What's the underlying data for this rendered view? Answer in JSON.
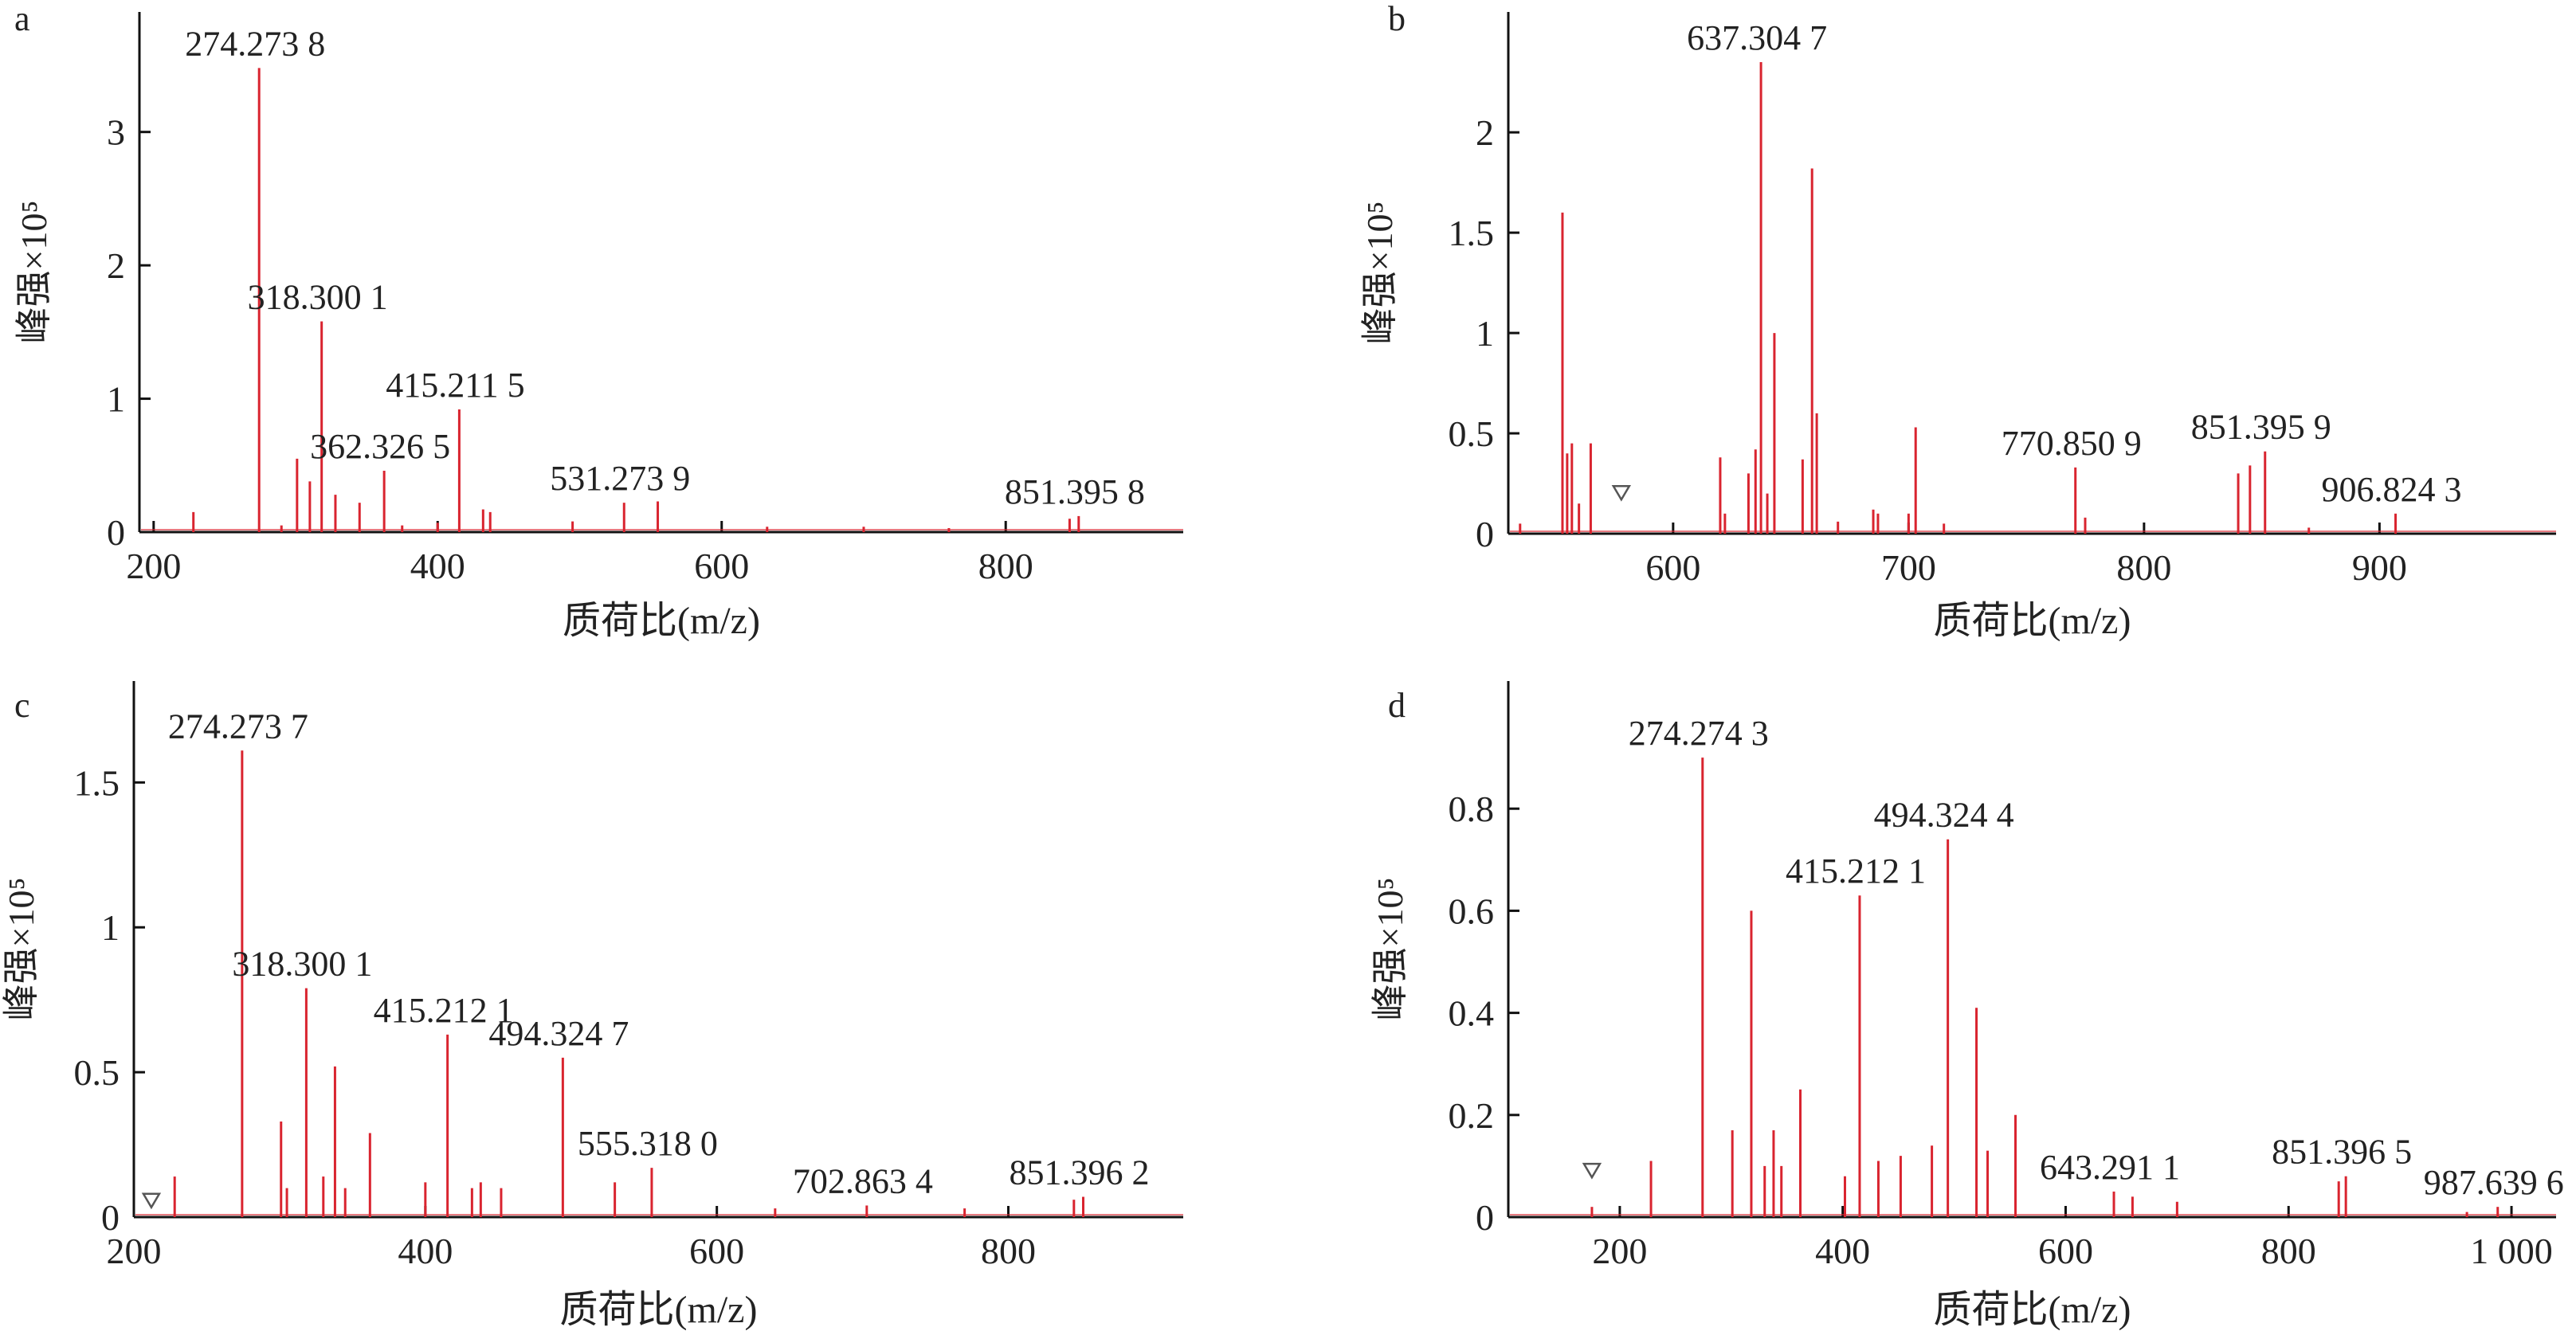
{
  "figure": {
    "line_color": "#d9242f",
    "marker_color": "#555555"
  },
  "chart_data": [
    {
      "panel": "a",
      "type": "bar",
      "xlabel": "质荷比(m/z)",
      "ylabel": "峰强×10⁵",
      "xlim": [
        190,
        925
      ],
      "ylim": [
        0,
        3.9
      ],
      "xticks": [
        200,
        400,
        600,
        800
      ],
      "yticks": [
        0,
        1,
        2,
        3
      ],
      "peaks": [
        {
          "x": 228,
          "y": 0.15
        },
        {
          "x": 274.2738,
          "y": 3.48,
          "label": "274.273 8"
        },
        {
          "x": 290,
          "y": 0.05
        },
        {
          "x": 301,
          "y": 0.55
        },
        {
          "x": 310,
          "y": 0.38
        },
        {
          "x": 318.3001,
          "y": 1.58,
          "label": "318.300 1"
        },
        {
          "x": 328,
          "y": 0.28
        },
        {
          "x": 345,
          "y": 0.22
        },
        {
          "x": 362.3265,
          "y": 0.46,
          "label": "362.326 5"
        },
        {
          "x": 375,
          "y": 0.05
        },
        {
          "x": 400,
          "y": 0.07
        },
        {
          "x": 415.2115,
          "y": 0.92,
          "label": "415.211 5"
        },
        {
          "x": 432,
          "y": 0.17
        },
        {
          "x": 437,
          "y": 0.15
        },
        {
          "x": 495,
          "y": 0.08
        },
        {
          "x": 531.2739,
          "y": 0.22,
          "label": "531.273 9"
        },
        {
          "x": 555,
          "y": 0.23
        },
        {
          "x": 632,
          "y": 0.04
        },
        {
          "x": 700,
          "y": 0.04
        },
        {
          "x": 760,
          "y": 0.03
        },
        {
          "x": 845,
          "y": 0.1
        },
        {
          "x": 851.3958,
          "y": 0.12,
          "label": "851.395 8"
        }
      ],
      "markers": []
    },
    {
      "panel": "b",
      "type": "bar",
      "xlabel": "质荷比(m/z)",
      "ylabel": "峰强×10⁵",
      "xlim": [
        530,
        975
      ],
      "ylim": [
        0,
        2.6
      ],
      "xticks": [
        600,
        700,
        800,
        900
      ],
      "yticks": [
        0,
        0.5,
        1.0,
        1.5,
        2.0
      ],
      "peaks": [
        {
          "x": 535,
          "y": 0.05
        },
        {
          "x": 553,
          "y": 1.6
        },
        {
          "x": 555,
          "y": 0.4
        },
        {
          "x": 557,
          "y": 0.45
        },
        {
          "x": 560,
          "y": 0.15
        },
        {
          "x": 565,
          "y": 0.45
        },
        {
          "x": 620,
          "y": 0.38
        },
        {
          "x": 622,
          "y": 0.1
        },
        {
          "x": 632,
          "y": 0.3
        },
        {
          "x": 635,
          "y": 0.42
        },
        {
          "x": 637.3047,
          "y": 2.35,
          "label": "637.304 7"
        },
        {
          "x": 640,
          "y": 0.2
        },
        {
          "x": 643,
          "y": 1.0
        },
        {
          "x": 655,
          "y": 0.37
        },
        {
          "x": 659,
          "y": 1.82
        },
        {
          "x": 661,
          "y": 0.6
        },
        {
          "x": 670,
          "y": 0.06
        },
        {
          "x": 685,
          "y": 0.12
        },
        {
          "x": 687,
          "y": 0.1
        },
        {
          "x": 700,
          "y": 0.1
        },
        {
          "x": 703,
          "y": 0.53
        },
        {
          "x": 715,
          "y": 0.05
        },
        {
          "x": 770.8509,
          "y": 0.33,
          "label": "770.850 9"
        },
        {
          "x": 775,
          "y": 0.08
        },
        {
          "x": 840,
          "y": 0.3
        },
        {
          "x": 845,
          "y": 0.34
        },
        {
          "x": 851.3959,
          "y": 0.41,
          "label": "851.395 9"
        },
        {
          "x": 870,
          "y": 0.03
        },
        {
          "x": 906.8243,
          "y": 0.1,
          "label": "906.824 3"
        }
      ],
      "markers": [
        {
          "x": 578,
          "y": 0.15
        }
      ]
    },
    {
      "panel": "c",
      "type": "bar",
      "xlabel": "质荷比(m/z)",
      "ylabel": "峰强×10⁵",
      "xlim": [
        200,
        920
      ],
      "ylim": [
        0,
        1.85
      ],
      "xticks": [
        200,
        400,
        600,
        800
      ],
      "yticks": [
        0,
        0.5,
        1.0,
        1.5
      ],
      "peaks": [
        {
          "x": 228,
          "y": 0.14
        },
        {
          "x": 274.2737,
          "y": 1.61,
          "label": "274.273 7"
        },
        {
          "x": 301,
          "y": 0.33
        },
        {
          "x": 305,
          "y": 0.1
        },
        {
          "x": 318.3001,
          "y": 0.79,
          "label": "318.300 1"
        },
        {
          "x": 330,
          "y": 0.14
        },
        {
          "x": 338,
          "y": 0.52
        },
        {
          "x": 345,
          "y": 0.1
        },
        {
          "x": 362,
          "y": 0.29
        },
        {
          "x": 400,
          "y": 0.12
        },
        {
          "x": 415.2121,
          "y": 0.63,
          "label": "415.212 1"
        },
        {
          "x": 432,
          "y": 0.1
        },
        {
          "x": 438,
          "y": 0.12
        },
        {
          "x": 452,
          "y": 0.1
        },
        {
          "x": 494.3247,
          "y": 0.55,
          "label": "494.324 7"
        },
        {
          "x": 530,
          "y": 0.12
        },
        {
          "x": 555.318,
          "y": 0.17,
          "label": "555.318 0"
        },
        {
          "x": 640,
          "y": 0.03
        },
        {
          "x": 702.8634,
          "y": 0.04,
          "label": "702.863 4"
        },
        {
          "x": 770,
          "y": 0.03
        },
        {
          "x": 845,
          "y": 0.06
        },
        {
          "x": 851.3962,
          "y": 0.07,
          "label": "851.396 2"
        }
      ],
      "markers": [
        {
          "x": 212,
          "y": 0.02
        }
      ]
    },
    {
      "panel": "d",
      "type": "bar",
      "xlabel": "质荷比(m/z)",
      "ylabel": "峰强×10⁵",
      "xlim": [
        100,
        1040
      ],
      "ylim": [
        0,
        1.05
      ],
      "xticks": [
        200,
        400,
        600,
        800,
        1000
      ],
      "xtick_labels": [
        "200",
        "400",
        "600",
        "800",
        "1 000"
      ],
      "yticks": [
        0,
        0.2,
        0.4,
        0.6,
        0.8
      ],
      "peaks": [
        {
          "x": 175,
          "y": 0.02
        },
        {
          "x": 228,
          "y": 0.11
        },
        {
          "x": 274.2743,
          "y": 0.9,
          "label": "274.274 3"
        },
        {
          "x": 301,
          "y": 0.17
        },
        {
          "x": 318,
          "y": 0.6
        },
        {
          "x": 330,
          "y": 0.1
        },
        {
          "x": 338,
          "y": 0.17
        },
        {
          "x": 345,
          "y": 0.1
        },
        {
          "x": 362,
          "y": 0.25
        },
        {
          "x": 402,
          "y": 0.08
        },
        {
          "x": 415.2121,
          "y": 0.63,
          "label": "415.212 1"
        },
        {
          "x": 432,
          "y": 0.11
        },
        {
          "x": 452,
          "y": 0.12
        },
        {
          "x": 480,
          "y": 0.14
        },
        {
          "x": 494.3244,
          "y": 0.74,
          "label": "494.324 4"
        },
        {
          "x": 520,
          "y": 0.41
        },
        {
          "x": 530,
          "y": 0.13
        },
        {
          "x": 555,
          "y": 0.2
        },
        {
          "x": 643.2911,
          "y": 0.05,
          "label": "643.291 1"
        },
        {
          "x": 660,
          "y": 0.04
        },
        {
          "x": 700,
          "y": 0.03
        },
        {
          "x": 845,
          "y": 0.07
        },
        {
          "x": 851.3965,
          "y": 0.08,
          "label": "851.396 5"
        },
        {
          "x": 960,
          "y": 0.01
        },
        {
          "x": 987.6396,
          "y": 0.02,
          "label": "987.639 6"
        }
      ],
      "markers": [
        {
          "x": 175,
          "y": 0.07
        }
      ]
    }
  ]
}
